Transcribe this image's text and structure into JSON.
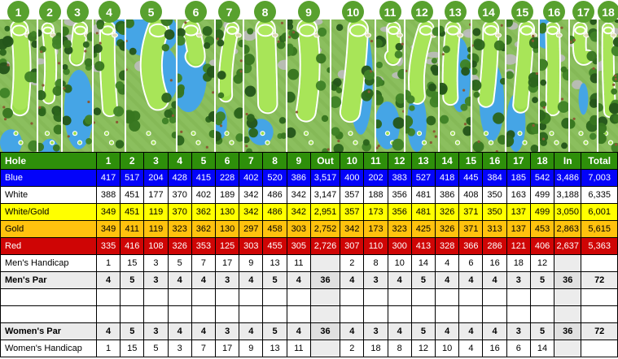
{
  "colors": {
    "header_green": "#2e8f0a",
    "hole_badge_green": "#58a12e",
    "blue_tee": "#0303fa",
    "white_tee": "#ffffff",
    "white_gold_tee": "#ffff00",
    "gold_tee": "#ffc20e",
    "red_tee": "#cf0505",
    "par_row_gray": "#ebebeb",
    "par_outin_gray": "#e0e0e0",
    "outin_gray": "#ececec",
    "grid_black": "#000000",
    "map_grass": "#85b957",
    "map_grass_stripe": "#94c768",
    "map_fairway": "#9ade4a",
    "map_fairway_light": "#aee85e",
    "map_trees": "#2c651c",
    "map_water": "#45a5e6",
    "map_sand": "#ded9b3",
    "map_rock_gray": "#bcbcbc"
  },
  "holes": [
    "1",
    "2",
    "3",
    "4",
    "5",
    "6",
    "7",
    "8",
    "9",
    "10",
    "11",
    "12",
    "13",
    "14",
    "15",
    "16",
    "17",
    "18"
  ],
  "scorecard": {
    "rows": [
      {
        "id": "header",
        "type": "header",
        "label": "Hole",
        "bg": "#2e8f0a",
        "fg": "#ffffff",
        "values": [
          "1",
          "2",
          "3",
          "4",
          "5",
          "6",
          "7",
          "8",
          "9",
          "Out",
          "10",
          "11",
          "12",
          "13",
          "14",
          "15",
          "16",
          "17",
          "18",
          "In",
          "Total"
        ]
      },
      {
        "id": "blue-tees",
        "type": "tee",
        "label": "Blue",
        "bg": "#0303fa",
        "fg": "#ffffff",
        "values": [
          "417",
          "517",
          "204",
          "428",
          "415",
          "228",
          "402",
          "520",
          "386",
          "3,517",
          "400",
          "202",
          "383",
          "527",
          "418",
          "445",
          "384",
          "185",
          "542",
          "3,486",
          "7,003"
        ]
      },
      {
        "id": "white-tees",
        "type": "tee",
        "label": "White",
        "bg": "#ffffff",
        "fg": "#000000",
        "values": [
          "388",
          "451",
          "177",
          "370",
          "402",
          "189",
          "342",
          "486",
          "342",
          "3,147",
          "357",
          "188",
          "356",
          "481",
          "386",
          "408",
          "350",
          "163",
          "499",
          "3,188",
          "6,335"
        ]
      },
      {
        "id": "white-gold-tees",
        "type": "tee",
        "label": "White/Gold",
        "bg": "#ffff00",
        "fg": "#000000",
        "values": [
          "349",
          "451",
          "119",
          "370",
          "362",
          "130",
          "342",
          "486",
          "342",
          "2,951",
          "357",
          "173",
          "356",
          "481",
          "326",
          "371",
          "350",
          "137",
          "499",
          "3,050",
          "6,001"
        ]
      },
      {
        "id": "gold-tees",
        "type": "tee",
        "label": "Gold",
        "bg": "#ffc20e",
        "fg": "#000000",
        "values": [
          "349",
          "411",
          "119",
          "323",
          "362",
          "130",
          "297",
          "458",
          "303",
          "2,752",
          "342",
          "173",
          "323",
          "425",
          "326",
          "371",
          "313",
          "137",
          "453",
          "2,863",
          "5,615"
        ]
      },
      {
        "id": "red-tees",
        "type": "tee",
        "label": "Red",
        "bg": "#cf0505",
        "fg": "#ffffff",
        "values": [
          "335",
          "416",
          "108",
          "326",
          "353",
          "125",
          "303",
          "455",
          "305",
          "2,726",
          "307",
          "110",
          "300",
          "413",
          "328",
          "366",
          "286",
          "121",
          "406",
          "2,637",
          "5,363"
        ]
      },
      {
        "id": "mens-handicap",
        "type": "hcp",
        "label": "Men's Handicap",
        "bg": "#ffffff",
        "fg": "#000000",
        "values": [
          "1",
          "15",
          "3",
          "5",
          "7",
          "17",
          "9",
          "13",
          "11",
          "",
          "2",
          "8",
          "10",
          "14",
          "4",
          "6",
          "16",
          "18",
          "12",
          "",
          ""
        ]
      },
      {
        "id": "mens-par",
        "type": "par",
        "label": "Men's Par",
        "bg": "#ebebeb",
        "fg": "#000000",
        "values": [
          "4",
          "5",
          "3",
          "4",
          "4",
          "3",
          "4",
          "5",
          "4",
          "36",
          "4",
          "3",
          "4",
          "5",
          "4",
          "4",
          "4",
          "3",
          "5",
          "36",
          "72"
        ]
      },
      {
        "id": "spacer-1",
        "type": "empty",
        "label": "",
        "bg": "#ffffff",
        "fg": "#000000",
        "values": [
          "",
          "",
          "",
          "",
          "",
          "",
          "",
          "",
          "",
          "",
          "",
          "",
          "",
          "",
          "",
          "",
          "",
          "",
          "",
          "",
          ""
        ]
      },
      {
        "id": "spacer-2",
        "type": "empty",
        "label": "",
        "bg": "#ffffff",
        "fg": "#000000",
        "values": [
          "",
          "",
          "",
          "",
          "",
          "",
          "",
          "",
          "",
          "",
          "",
          "",
          "",
          "",
          "",
          "",
          "",
          "",
          "",
          "",
          ""
        ]
      },
      {
        "id": "womens-par",
        "type": "par",
        "label": "Women's Par",
        "bg": "#ebebeb",
        "fg": "#000000",
        "values": [
          "4",
          "5",
          "3",
          "4",
          "4",
          "3",
          "4",
          "5",
          "4",
          "36",
          "4",
          "3",
          "4",
          "5",
          "4",
          "4",
          "4",
          "3",
          "5",
          "36",
          "72"
        ]
      },
      {
        "id": "womens-handicap",
        "type": "hcp",
        "label": "Women's Handicap",
        "bg": "#ffffff",
        "fg": "#000000",
        "values": [
          "1",
          "15",
          "5",
          "3",
          "7",
          "17",
          "9",
          "13",
          "11",
          "",
          "2",
          "18",
          "8",
          "12",
          "10",
          "4",
          "16",
          "6",
          "14",
          "",
          ""
        ]
      }
    ]
  }
}
